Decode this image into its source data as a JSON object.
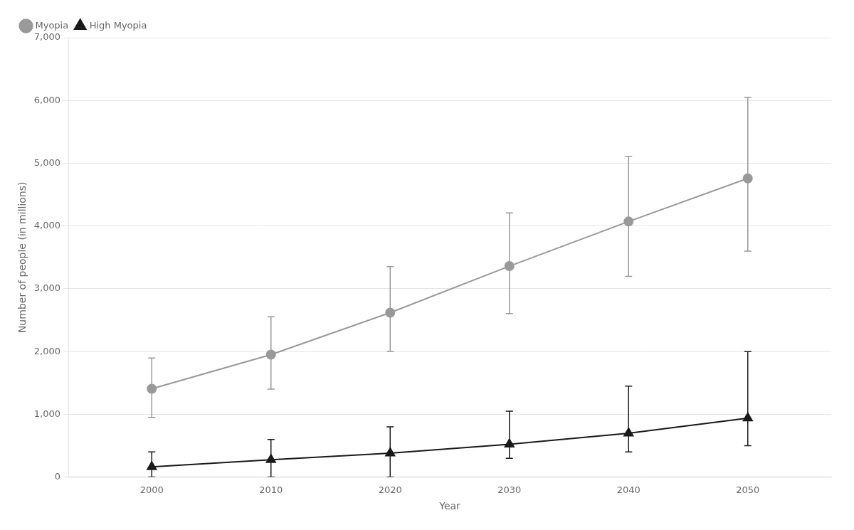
{
  "chart_data": {
    "type": "line",
    "x": [
      2000,
      2010,
      2020,
      2030,
      2040,
      2050
    ],
    "xlim": [
      1993,
      2057
    ],
    "xticks": [
      2000,
      2010,
      2020,
      2030,
      2040,
      2050
    ],
    "ylim": [
      0,
      7000
    ],
    "yticks": [
      0,
      {
        "value": 1000,
        "label": "1,000"
      },
      {
        "value": 2000,
        "label": "2,000"
      },
      {
        "value": 3000,
        "label": "3,000"
      },
      {
        "value": 4000,
        "label": "4,000"
      },
      {
        "value": 5000,
        "label": "5,000"
      },
      {
        "value": 6000,
        "label": "6,000"
      },
      {
        "value": 7000,
        "label": "7,000"
      }
    ],
    "xlabel": "Year",
    "ylabel": "Number of people (in millions)",
    "grid": "y",
    "legend": "upper left",
    "series": [
      {
        "name": "Myopia",
        "color": "#999999",
        "marker": "circle",
        "line_style": "solid",
        "values": [
          1406,
          1950,
          2620,
          3361,
          4072,
          4758
        ],
        "err_low": [
          455,
          548,
          618,
          757,
          875,
          1158
        ],
        "err_high": [
          490,
          604,
          733,
          848,
          1038,
          1292
        ]
      },
      {
        "name": "High Myopia",
        "color": "#1a1a1a",
        "marker": "triangle",
        "line_style": "solid",
        "values": [
          163,
          277,
          381,
          522,
          697,
          938
        ],
        "err_low": [
          163,
          277,
          381,
          222,
          297,
          438
        ],
        "err_high": [
          237,
          323,
          419,
          528,
          753,
          1062
        ]
      }
    ]
  }
}
